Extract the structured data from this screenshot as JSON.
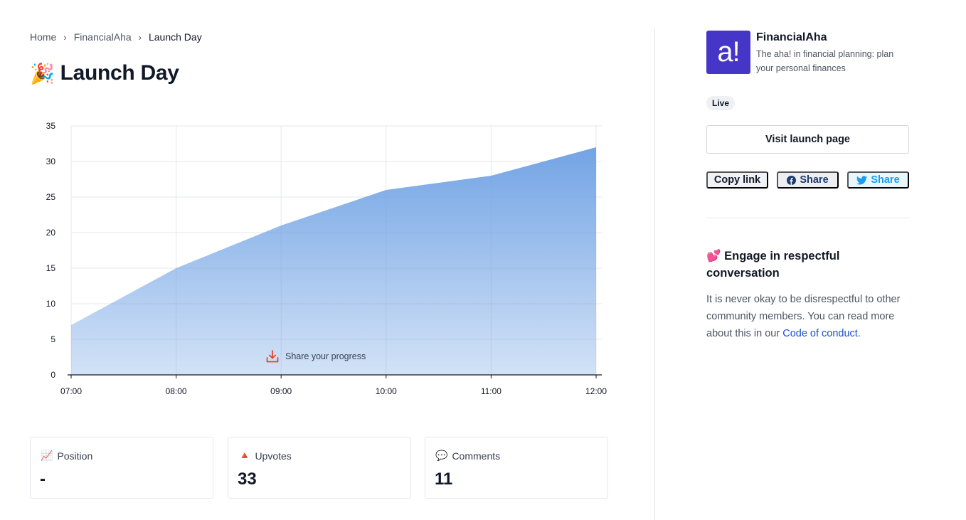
{
  "breadcrumb": {
    "home": "Home",
    "product": "FinancialAha",
    "current": "Launch Day",
    "separator": "›"
  },
  "page": {
    "title_emoji": "🎉",
    "title": "Launch Day"
  },
  "chart_data": {
    "type": "area",
    "x": [
      "07:00",
      "08:00",
      "09:00",
      "10:00",
      "11:00",
      "12:00"
    ],
    "series": [
      {
        "values": [
          7,
          15,
          21,
          26,
          28,
          32
        ]
      }
    ],
    "yticks": [
      0,
      5,
      10,
      15,
      20,
      25,
      30,
      35
    ],
    "ylim": [
      0,
      35
    ],
    "grid": true,
    "fill_color": "#6b9fe3"
  },
  "share_progress": {
    "label": "Share your progress",
    "icon": "download-icon"
  },
  "stats": [
    {
      "emoji": "📈",
      "label": "Position",
      "value": "-"
    },
    {
      "emoji": "🔺",
      "label": "Upvotes",
      "value": "33"
    },
    {
      "emoji": "💬",
      "label": "Comments",
      "value": "11"
    }
  ],
  "product": {
    "logo_text": "a!",
    "name": "FinancialAha",
    "tagline": "The aha! in financial planning: plan your personal finances",
    "status": "Live",
    "logo_color": "#4636c8"
  },
  "actions": {
    "visit": "Visit launch page",
    "copy_link": "Copy link",
    "facebook_share": "Share",
    "twitter_share": "Share"
  },
  "engage": {
    "emoji": "💕",
    "title": "Engage in respectful conversation",
    "text_before": "It is never okay to be disrespectful to other community members. You can read more about this in our ",
    "link": "Code of conduct",
    "text_after": "."
  }
}
